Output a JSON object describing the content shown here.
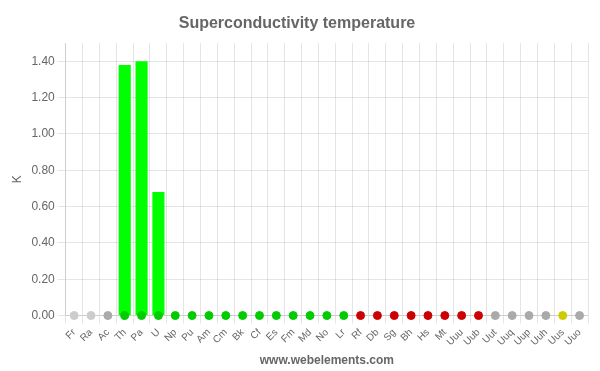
{
  "chart_data": {
    "type": "bar",
    "title": "Superconductivity temperature",
    "y_label": "K",
    "annotations": [
      "www.webelements.com"
    ],
    "categories": [
      "Fr",
      "Ra",
      "Ac",
      "Th",
      "Pa",
      "U",
      "Np",
      "Pu",
      "Am",
      "Cm",
      "Bk",
      "Cf",
      "Es",
      "Fm",
      "Md",
      "No",
      "Lr",
      "Rf",
      "Db",
      "Sg",
      "Bh",
      "Hs",
      "Mt",
      "Uuu",
      "Uub",
      "Uut",
      "Uuq",
      "Uup",
      "Uuh",
      "Uus",
      "Uuo"
    ],
    "series": [
      {
        "type": "bar",
        "color": "#00ff00",
        "values": [
          0.0,
          0.0,
          0.0,
          1.38,
          1.4,
          0.68,
          0.0,
          0.0,
          0.0,
          0.0,
          0.0,
          0.0,
          0.0,
          0.0,
          0.0,
          0.0,
          0.0,
          0.0,
          0.0,
          0.0,
          0.0,
          0.0,
          0.0,
          0.0,
          0.0,
          0.0,
          0.0,
          0.0,
          0.0,
          0.0,
          0.0
        ]
      },
      {
        "type": "scatter",
        "marker": "circle",
        "colors": [
          "#cccccc",
          "#cccccc",
          "#aaaaaa",
          "#00cc00",
          "#00cc00",
          "#00cc00",
          "#00cc00",
          "#00cc00",
          "#00cc00",
          "#00cc00",
          "#00cc00",
          "#00cc00",
          "#00cc00",
          "#00cc00",
          "#00cc00",
          "#00cc00",
          "#00cc00",
          "#cc0000",
          "#cc0000",
          "#cc0000",
          "#cc0000",
          "#cc0000",
          "#cc0000",
          "#cc0000",
          "#cc0000",
          "#aaaaaa",
          "#aaaaaa",
          "#aaaaaa",
          "#aaaaaa",
          "#cccc00",
          "#aaaaaa"
        ],
        "values": [
          0,
          0,
          0,
          0,
          0,
          0,
          0,
          0,
          0,
          0,
          0,
          0,
          0,
          0,
          0,
          0,
          0,
          0,
          0,
          0,
          0,
          0,
          0,
          0,
          0,
          0,
          0,
          0,
          0,
          0,
          0
        ]
      }
    ],
    "ylim": [
      0,
      1.5
    ],
    "yticks": [
      {
        "value": 0.0,
        "label": "0.00"
      },
      {
        "value": 0.2,
        "label": "0.20"
      },
      {
        "value": 0.4,
        "label": "0.40"
      },
      {
        "value": 0.6,
        "label": "0.60"
      },
      {
        "value": 0.8,
        "label": "0.80"
      },
      {
        "value": 1.0,
        "label": "1.00"
      },
      {
        "value": 1.2,
        "label": "1.20"
      },
      {
        "value": 1.4,
        "label": "1.40"
      }
    ],
    "grid": true,
    "legend": false
  }
}
